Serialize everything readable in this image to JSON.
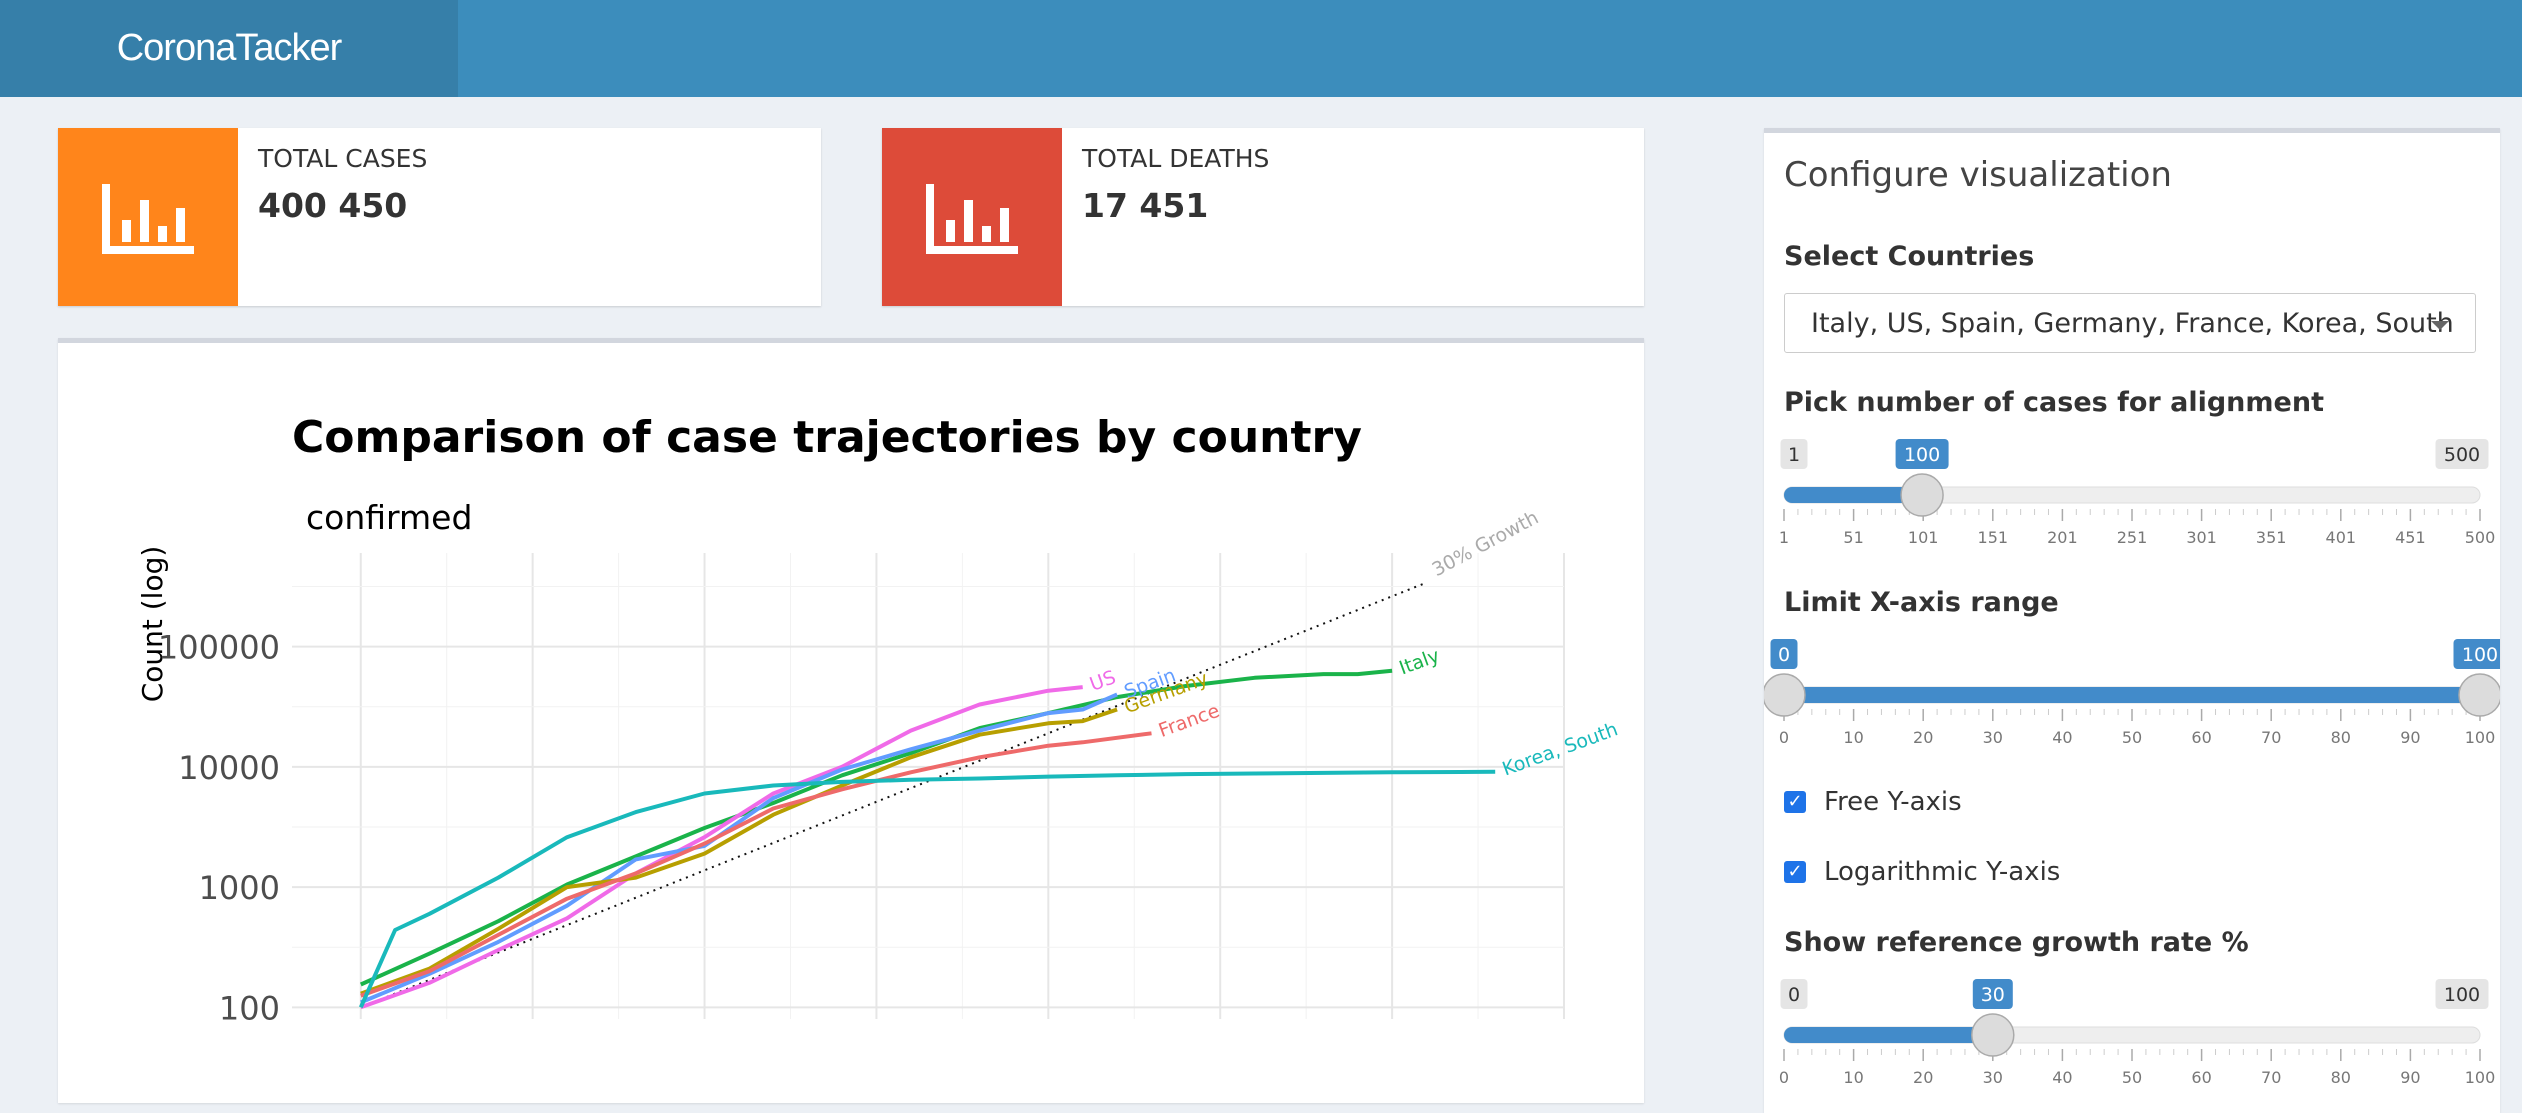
{
  "app": {
    "title": "CoronaTacker"
  },
  "stats": {
    "cases": {
      "label": "TOTAL CASES",
      "value": "400 450",
      "color": "#ff851b"
    },
    "deaths": {
      "label": "TOTAL DEATHS",
      "value": "17 451",
      "color": "#dd4b39"
    }
  },
  "icons": {
    "stats_icon": "bar-chart-icon",
    "dropdown": "caret-down-icon",
    "checkbox": "checkmark-icon"
  },
  "config": {
    "title": "Configure visualization",
    "countries": {
      "label": "Select Countries",
      "value": "Italy, US, Spain, Germany, France, Korea, South"
    },
    "alignment": {
      "label": "Pick number of cases for alignment",
      "min": 1,
      "max": 500,
      "value": 100,
      "min_label": "1",
      "max_label": "500",
      "value_label": "100",
      "ticks": [
        "1",
        "51",
        "101",
        "151",
        "201",
        "251",
        "301",
        "351",
        "401",
        "451",
        "500"
      ]
    },
    "xrange": {
      "label": "Limit X-axis range",
      "min": 0,
      "max": 100,
      "from": 0,
      "to": 100,
      "from_label": "0",
      "to_label": "100",
      "ticks": [
        "0",
        "10",
        "20",
        "30",
        "40",
        "50",
        "60",
        "70",
        "80",
        "90",
        "100"
      ]
    },
    "free_y": {
      "label": "Free Y-axis",
      "checked": true
    },
    "log_y": {
      "label": "Logarithmic Y-axis",
      "checked": true
    },
    "growth": {
      "label": "Show reference growth rate %",
      "min": 0,
      "max": 100,
      "value": 30,
      "min_label": "0",
      "max_label": "100",
      "value_label": "30",
      "ticks": [
        "0",
        "10",
        "20",
        "30",
        "40",
        "50",
        "60",
        "70",
        "80",
        "90",
        "100"
      ]
    }
  },
  "chart_data": {
    "type": "line",
    "title": "Comparison of case trajectories by country",
    "subtitle": "confirmed",
    "ylabel": "Count (log)",
    "xlabel": "",
    "yscale": "log",
    "ylim": [
      80,
      600000
    ],
    "xlim": [
      -2,
      35
    ],
    "yticks": [
      100,
      1000,
      10000,
      100000
    ],
    "ytick_labels": [
      "100",
      "1000",
      "10000",
      "100000"
    ],
    "grid": true,
    "legend": "inline labels at line ends",
    "reference": {
      "name": "30% Growth",
      "rate": 0.3,
      "start": 100,
      "x_end": 31
    },
    "series": [
      {
        "name": "Italy",
        "color": "#1ab34a",
        "x": [
          0,
          2,
          4,
          6,
          8,
          10,
          12,
          14,
          16,
          18,
          20,
          22,
          24,
          26,
          28,
          29,
          30
        ],
        "y": [
          155,
          280,
          520,
          1050,
          1800,
          3100,
          5000,
          8500,
          13000,
          21000,
          28000,
          38000,
          47000,
          55000,
          59000,
          59000,
          63000
        ]
      },
      {
        "name": "US",
        "color": "#f06ae8",
        "x": [
          0,
          2,
          4,
          6,
          8,
          10,
          12,
          14,
          16,
          18,
          20,
          21
        ],
        "y": [
          100,
          160,
          300,
          550,
          1300,
          2600,
          6000,
          10000,
          20000,
          33000,
          43000,
          46000
        ]
      },
      {
        "name": "Spain",
        "color": "#619cff",
        "x": [
          0,
          2,
          4,
          6,
          8,
          10,
          12,
          14,
          16,
          18,
          20,
          21,
          22
        ],
        "y": [
          110,
          190,
          350,
          700,
          1700,
          2200,
          5500,
          9500,
          14000,
          20000,
          28000,
          30000,
          40000
        ]
      },
      {
        "name": "Germany",
        "color": "#b79f00",
        "x": [
          0,
          2,
          4,
          6,
          8,
          10,
          12,
          14,
          16,
          18,
          20,
          21,
          22
        ],
        "y": [
          130,
          210,
          450,
          1000,
          1200,
          1900,
          4000,
          7000,
          12000,
          18500,
          23000,
          24000,
          30000
        ]
      },
      {
        "name": "France",
        "color": "#ee6a6a",
        "x": [
          0,
          2,
          4,
          6,
          8,
          10,
          12,
          14,
          16,
          18,
          20,
          21,
          23
        ],
        "y": [
          125,
          200,
          400,
          800,
          1300,
          2300,
          4500,
          6500,
          9000,
          12000,
          15000,
          16000,
          19000
        ]
      },
      {
        "name": "Korea, South",
        "color": "#19b9bb",
        "x": [
          0,
          1,
          2,
          4,
          6,
          8,
          10,
          12,
          14,
          16,
          18,
          20,
          22,
          24,
          26,
          28,
          30,
          32,
          33
        ],
        "y": [
          100,
          440,
          600,
          1200,
          2600,
          4200,
          6000,
          7000,
          7500,
          7800,
          8000,
          8300,
          8500,
          8700,
          8800,
          8900,
          9000,
          9050,
          9100
        ]
      }
    ]
  }
}
